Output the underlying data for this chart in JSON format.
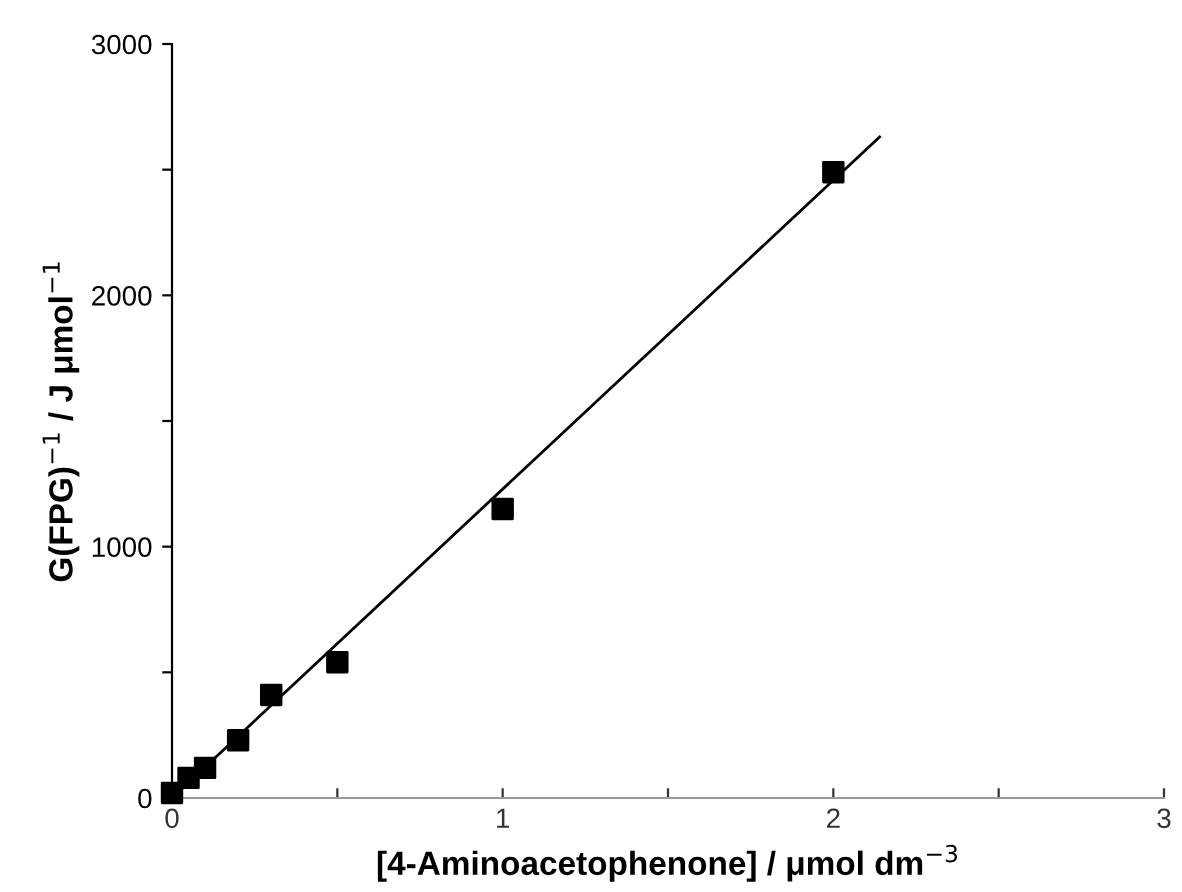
{
  "chart_data": {
    "type": "scatter",
    "xlabel": "[4-Aminoacetophenone] / μmol dm$^{−3}$",
    "ylabel": "G(FPG)$^{−1}$ / J μmol$^{−1}$",
    "x": [
      0,
      0.05,
      0.1,
      0.2,
      0.3,
      0.5,
      1,
      2
    ],
    "series": [
      {
        "color": "#000000",
        "marker": "square",
        "values": [
          20,
          80,
          120,
          230,
          410,
          540,
          1150,
          2490
        ]
      },
      {
        "type": "line",
        "color": "#000000",
        "marker": "none",
        "line_style": "solid",
        "x": [
          0,
          2.14
        ],
        "values": [
          0,
          2630
        ]
      }
    ],
    "xlim": [
      0,
      3
    ],
    "ylim": [
      0,
      3000
    ],
    "xticks": [
      0,
      {
        "value": 0.5,
        "label": null
      },
      1,
      {
        "value": 1.5,
        "label": null
      },
      2,
      {
        "value": 2.5,
        "label": null
      },
      3
    ],
    "yticks": [
      0,
      {
        "value": 500,
        "label": null
      },
      1000,
      {
        "value": 1500,
        "label": null
      },
      2000,
      {
        "value": 2500,
        "label": null
      },
      3000
    ],
    "grid": false,
    "legend": false
  }
}
